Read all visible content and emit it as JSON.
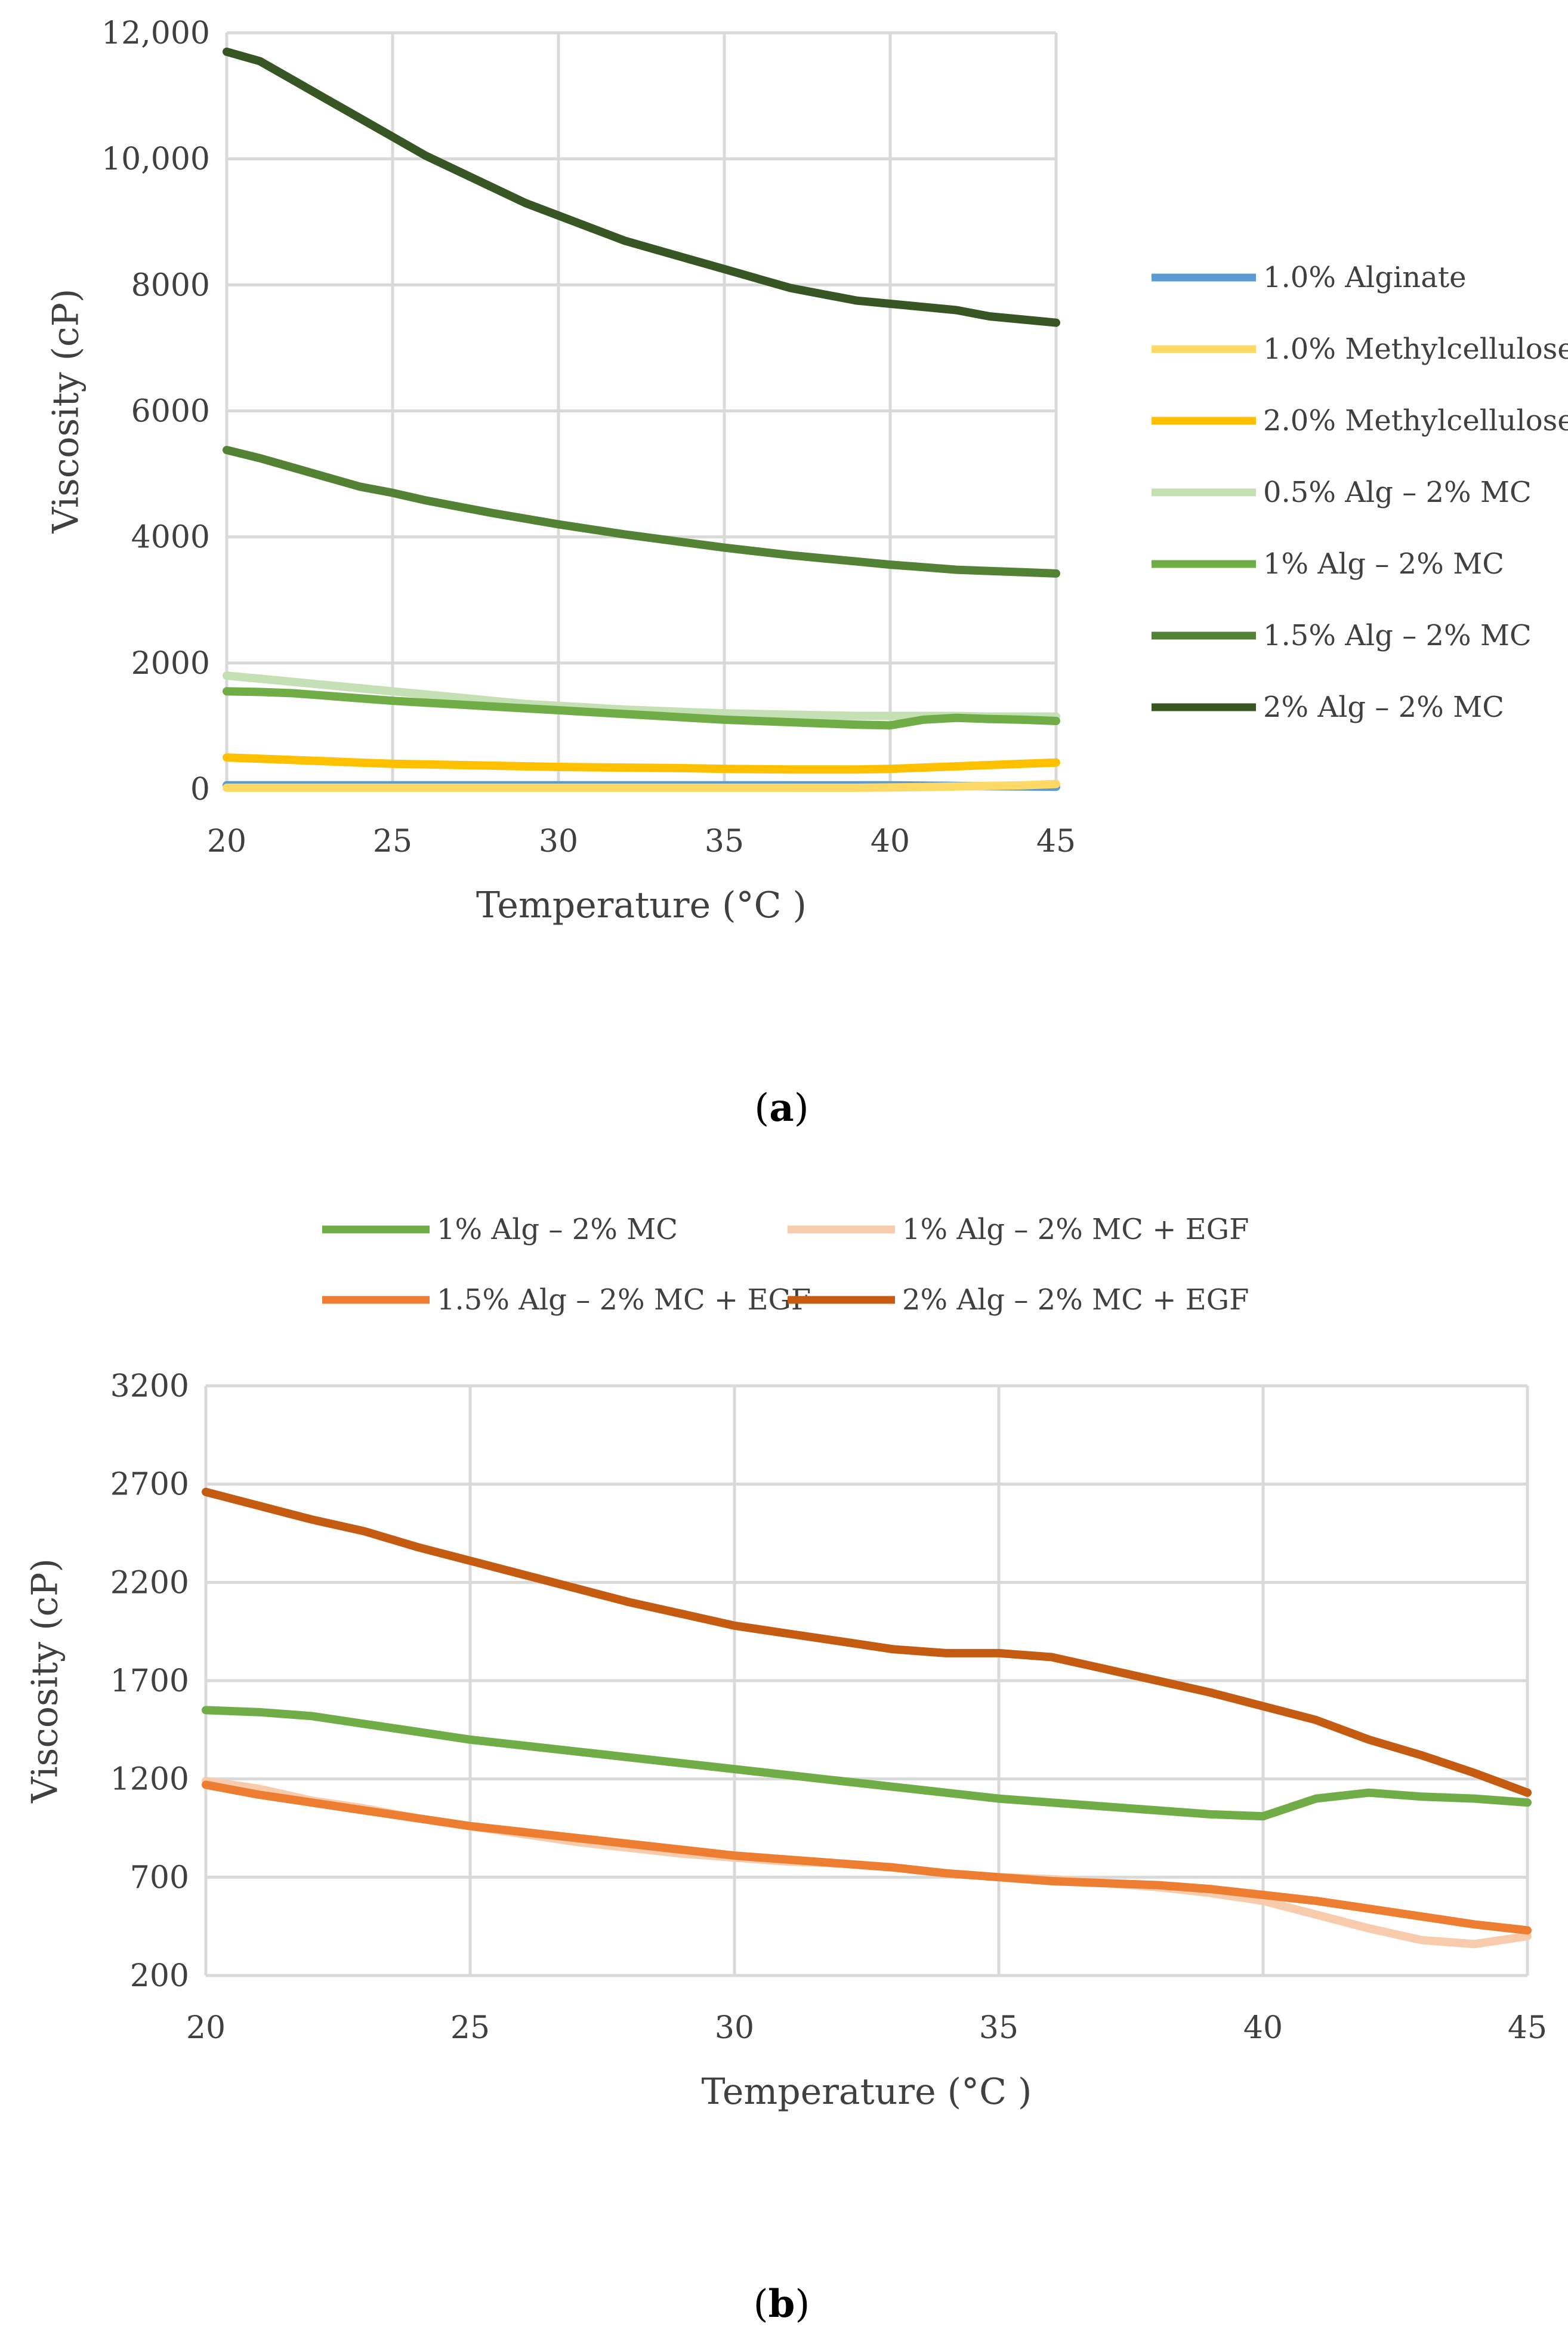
{
  "chart_data": [
    {
      "id": "a",
      "type": "line",
      "caption": "a",
      "xlabel": "Temperature (°C )",
      "ylabel": "Viscosity (cP)",
      "xlim": [
        20,
        45
      ],
      "ylim": [
        0,
        12000
      ],
      "x_ticks": [
        "20",
        "25",
        "30",
        "35",
        "40",
        "45"
      ],
      "y_ticks": [
        "0",
        "2000",
        "4000",
        "6000",
        "8000",
        "10,000",
        "12,000"
      ],
      "grid": true,
      "legend_position": "right",
      "x": [
        20,
        21,
        22,
        23,
        24,
        25,
        26,
        27,
        28,
        29,
        30,
        31,
        32,
        33,
        34,
        35,
        36,
        37,
        38,
        39,
        40,
        41,
        42,
        43,
        44,
        45
      ],
      "series": [
        {
          "name": "1.0% Alginate",
          "color": "#5b9bd5",
          "values": [
            60,
            60,
            60,
            60,
            60,
            60,
            60,
            60,
            60,
            60,
            60,
            60,
            60,
            60,
            60,
            60,
            60,
            60,
            60,
            60,
            60,
            55,
            50,
            45,
            40,
            35
          ]
        },
        {
          "name": "1.0% Methylcellulose",
          "color": "#ffd966",
          "values": [
            20,
            20,
            20,
            20,
            20,
            20,
            20,
            20,
            20,
            20,
            20,
            20,
            20,
            20,
            20,
            20,
            20,
            20,
            20,
            20,
            25,
            30,
            40,
            50,
            60,
            80
          ]
        },
        {
          "name": "2.0% Methylcellulose",
          "color": "#ffc000",
          "values": [
            500,
            480,
            460,
            440,
            420,
            400,
            390,
            380,
            370,
            360,
            350,
            345,
            340,
            335,
            330,
            320,
            315,
            310,
            310,
            310,
            320,
            340,
            360,
            380,
            400,
            420
          ]
        },
        {
          "name": "0.5% Alg – 2% MC",
          "color": "#c5e0b4",
          "values": [
            1800,
            1750,
            1700,
            1650,
            1600,
            1550,
            1500,
            1450,
            1400,
            1350,
            1320,
            1290,
            1260,
            1240,
            1220,
            1200,
            1190,
            1180,
            1170,
            1160,
            1160,
            1160,
            1160,
            1150,
            1150,
            1150
          ]
        },
        {
          "name": "1% Alg – 2% MC",
          "color": "#70ad47",
          "values": [
            1550,
            1540,
            1520,
            1480,
            1440,
            1400,
            1370,
            1340,
            1310,
            1280,
            1250,
            1220,
            1190,
            1160,
            1130,
            1100,
            1080,
            1060,
            1040,
            1020,
            1010,
            1100,
            1130,
            1110,
            1100,
            1080
          ]
        },
        {
          "name": "1.5% Alg – 2% MC",
          "color": "#548235",
          "values": [
            5380,
            5250,
            5100,
            4950,
            4800,
            4700,
            4580,
            4480,
            4380,
            4290,
            4200,
            4120,
            4040,
            3970,
            3900,
            3830,
            3770,
            3710,
            3660,
            3610,
            3560,
            3520,
            3480,
            3460,
            3440,
            3420
          ]
        },
        {
          "name": "2% Alg – 2% MC",
          "color": "#375623",
          "values": [
            11700,
            11550,
            11250,
            10950,
            10650,
            10350,
            10050,
            9800,
            9550,
            9300,
            9100,
            8900,
            8700,
            8550,
            8400,
            8250,
            8100,
            7950,
            7850,
            7750,
            7700,
            7650,
            7600,
            7500,
            7450,
            7400
          ]
        }
      ]
    },
    {
      "id": "b",
      "type": "line",
      "caption": "b",
      "xlabel": "Temperature (°C )",
      "ylabel": "Viscosity (cP)",
      "xlim": [
        20,
        45
      ],
      "ylim": [
        200,
        3200
      ],
      "x_ticks": [
        "20",
        "25",
        "30",
        "35",
        "40",
        "45"
      ],
      "y_ticks": [
        "200",
        "700",
        "1200",
        "1700",
        "2200",
        "2700",
        "3200"
      ],
      "grid": true,
      "legend_position": "top",
      "x": [
        20,
        21,
        22,
        23,
        24,
        25,
        26,
        27,
        28,
        29,
        30,
        31,
        32,
        33,
        34,
        35,
        36,
        37,
        38,
        39,
        40,
        41,
        42,
        43,
        44,
        45
      ],
      "series": [
        {
          "name": "1% Alg – 2% MC",
          "color": "#70ad47",
          "values": [
            1550,
            1540,
            1520,
            1480,
            1440,
            1400,
            1370,
            1340,
            1310,
            1280,
            1250,
            1220,
            1190,
            1160,
            1130,
            1100,
            1080,
            1060,
            1040,
            1020,
            1010,
            1100,
            1130,
            1110,
            1100,
            1080
          ]
        },
        {
          "name": "1% Alg – 2% MC + EGF",
          "color": "#f8cbad",
          "values": [
            1190,
            1150,
            1090,
            1050,
            1000,
            960,
            920,
            880,
            850,
            820,
            800,
            780,
            770,
            750,
            720,
            700,
            690,
            670,
            650,
            620,
            580,
            510,
            440,
            380,
            360,
            400
          ]
        },
        {
          "name": "1.5% Alg – 2% MC + EGF",
          "color": "#ed7d31",
          "values": [
            1170,
            1120,
            1080,
            1040,
            1000,
            960,
            930,
            900,
            870,
            840,
            810,
            790,
            770,
            750,
            720,
            700,
            680,
            670,
            660,
            640,
            610,
            580,
            540,
            500,
            460,
            430
          ]
        },
        {
          "name": "2% Alg – 2% MC + EGF",
          "color": "#c55a11",
          "values": [
            2660,
            2590,
            2520,
            2460,
            2380,
            2310,
            2240,
            2170,
            2100,
            2040,
            1980,
            1940,
            1900,
            1860,
            1840,
            1840,
            1820,
            1760,
            1700,
            1640,
            1570,
            1500,
            1400,
            1320,
            1230,
            1130
          ]
        }
      ]
    }
  ]
}
